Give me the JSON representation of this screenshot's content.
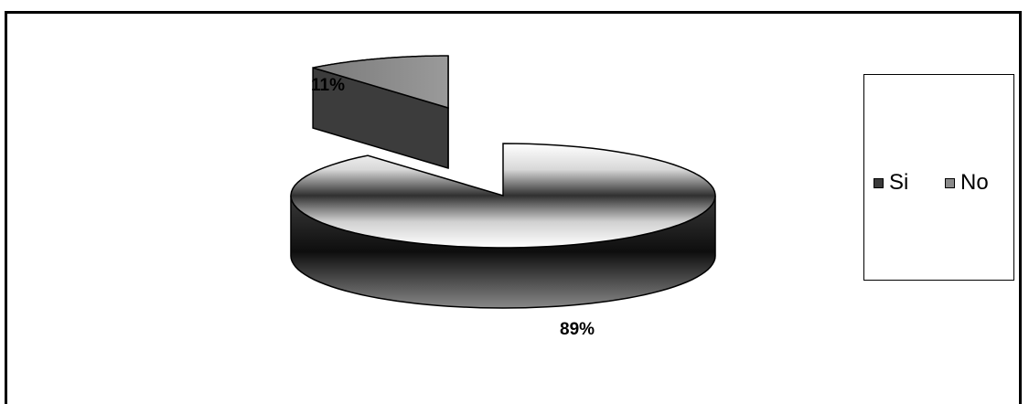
{
  "chart_data": {
    "type": "pie",
    "style": "3d-exploded",
    "categories": [
      "Si",
      "No"
    ],
    "values": [
      89,
      11
    ],
    "data_labels": [
      "89%",
      "11%"
    ],
    "legend": {
      "entries": [
        "Si",
        "No"
      ],
      "placement": "right"
    },
    "colors": {
      "Si": "#3a3a3a",
      "No": "#8a8a8a"
    }
  }
}
